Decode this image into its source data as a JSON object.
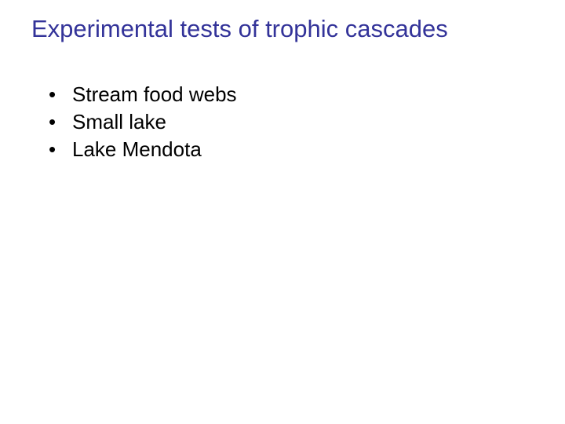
{
  "slide": {
    "title": "Experimental tests of trophic cascades",
    "title_color": "#333399",
    "title_fontsize": 31,
    "background_color": "#ffffff",
    "bullets": [
      {
        "text": "Stream food webs"
      },
      {
        "text": "Small lake"
      },
      {
        "text": "Lake Mendota"
      }
    ],
    "bullet_color": "#000000",
    "bullet_fontsize": 26,
    "font_family": "Comic Sans MS"
  }
}
